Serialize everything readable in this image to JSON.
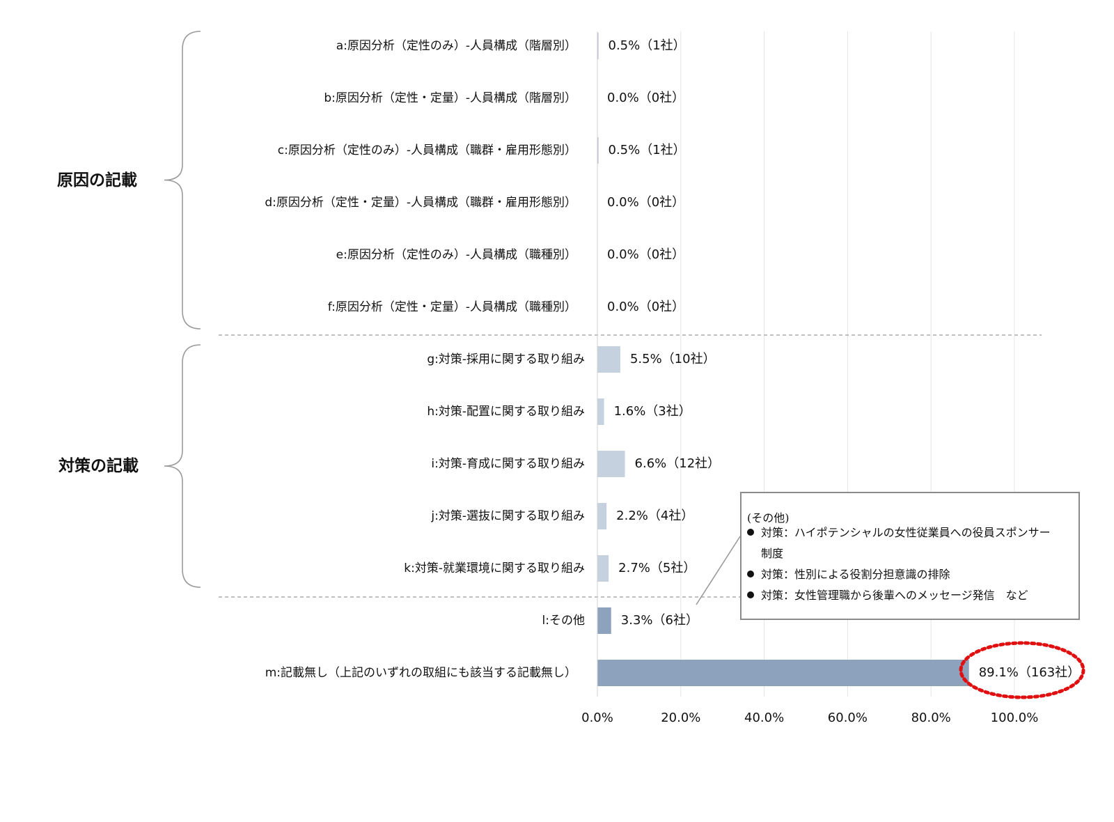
{
  "chart_data": {
    "type": "bar",
    "orientation": "horizontal",
    "categories": [
      "a:原因分析（定性のみ）-人員構成（階層別）",
      "b:原因分析（定性・定量）-人員構成（階層別）",
      "c:原因分析（定性のみ）-人員構成（職群・雇用形態別）",
      "d:原因分析（定性・定量）-人員構成（職群・雇用形態別）",
      "e:原因分析（定性のみ）-人員構成（職種別）",
      "f:原因分析（定性・定量）-人員構成（職種別）",
      "g:対策-採用に関する取り組み",
      "h:対策-配置に関する取り組み",
      "i:対策-育成に関する取り組み",
      "j:対策-選抜に関する取り組み",
      "k:対策-就業環境に関する取り組み",
      "l:その他",
      "m:記載無し（上記のいずれの取組にも該当する記載無し）"
    ],
    "values": [
      0.5,
      0.0,
      0.5,
      0.0,
      0.0,
      0.0,
      5.5,
      1.6,
      6.6,
      2.2,
      2.7,
      3.3,
      89.1
    ],
    "data_labels": [
      "0.5%（1社）",
      "0.0%（0社）",
      "0.5%（1社）",
      "0.0%（0社）",
      "0.0%（0社）",
      "0.0%（0社）",
      "5.5%（10社）",
      "1.6%（3社）",
      "6.6%（12社）",
      "2.2%（4社）",
      "2.7%（5社）",
      "3.3%（6社）",
      "89.1%（163社）"
    ],
    "xlim": [
      0,
      100
    ],
    "xticks": [
      0,
      20,
      40,
      60,
      80,
      100
    ],
    "xtick_labels": [
      "0.0%",
      "20.0%",
      "40.0%",
      "60.0%",
      "80.0%",
      "100.0%"
    ],
    "grid": "vertical",
    "groups": [
      {
        "label": "原因の記載",
        "range": [
          0,
          5
        ]
      },
      {
        "label": "対策の記載",
        "range": [
          6,
          10
        ]
      }
    ],
    "highlight_index": 12,
    "annotation": {
      "title": "(その他)",
      "items": [
        "対策：ハイポテンシャルの女性従業員への役員スポンサー",
        "制度",
        "対策：性別による役割分担意識の排除",
        "対策：女性管理職から後輩へのメッセージ発信　など"
      ]
    }
  },
  "colors": {
    "bar_light": "#c5d1de",
    "bar_dark": "#8ca2bd",
    "bar_thin": "#b9b4d6",
    "highlight": "#e01010",
    "grid": "#e4e4e4",
    "separator": "#9a9a9a"
  }
}
